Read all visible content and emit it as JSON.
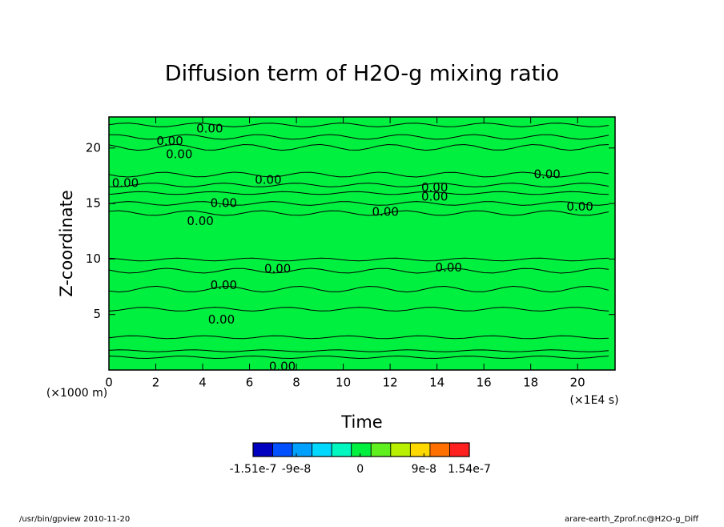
{
  "chart_data": {
    "type": "contour",
    "title": "Diffusion term of H2O-g mixing ratio",
    "xlabel": "Time",
    "ylabel": "Z-coordinate",
    "xunit": "(×1E4 s)",
    "yunit": "(×1000 m)",
    "xlim": [
      0,
      21.6
    ],
    "ylim": [
      0,
      22.8
    ],
    "xticks": [
      0,
      2,
      4,
      6,
      8,
      10,
      12,
      14,
      16,
      18,
      20
    ],
    "yticks": [
      5,
      10,
      15,
      20
    ],
    "field_color": "#00f040",
    "annotations": [
      {
        "text": "0.00",
        "x": 4.3,
        "y": 21.7
      },
      {
        "text": "0.00",
        "x": 2.6,
        "y": 20.6
      },
      {
        "text": "0.00",
        "x": 3.0,
        "y": 19.4
      },
      {
        "text": "0.00",
        "x": 0.7,
        "y": 16.8
      },
      {
        "text": "0.00",
        "x": 6.8,
        "y": 17.1
      },
      {
        "text": "0.00",
        "x": 13.9,
        "y": 16.4
      },
      {
        "text": "0.00",
        "x": 13.9,
        "y": 15.6
      },
      {
        "text": "0.00",
        "x": 18.7,
        "y": 17.6
      },
      {
        "text": "0.00",
        "x": 4.9,
        "y": 15.0
      },
      {
        "text": "0.00",
        "x": 11.8,
        "y": 14.2
      },
      {
        "text": "0.00",
        "x": 20.1,
        "y": 14.7
      },
      {
        "text": "0.00",
        "x": 3.9,
        "y": 13.4
      },
      {
        "text": "0.00",
        "x": 7.2,
        "y": 9.1
      },
      {
        "text": "0.00",
        "x": 14.5,
        "y": 9.2
      },
      {
        "text": "0.00",
        "x": 4.9,
        "y": 7.6
      },
      {
        "text": "0.00",
        "x": 4.8,
        "y": 4.5
      },
      {
        "text": "0.00",
        "x": 7.4,
        "y": 0.3
      }
    ],
    "colorbar": {
      "colors": [
        "#0000c0",
        "#0050ff",
        "#00a0ff",
        "#00d8ff",
        "#00f8c0",
        "#00f040",
        "#60f020",
        "#b8f000",
        "#ffd800",
        "#ff7000",
        "#ff2020"
      ],
      "clim": [
        -1.51e-07,
        1.54e-07
      ],
      "ticks": [
        {
          "value": -1.51e-07,
          "label": "-1.51e-7"
        },
        {
          "value": -9e-08,
          "label": "-9e-8"
        },
        0,
        {
          "value": 9e-08,
          "label": "9e-8"
        },
        {
          "value": 1.54e-07,
          "label": "1.54e-7"
        }
      ]
    },
    "footer_left": "/usr/bin/gpview  2010-11-20",
    "footer_right": "arare-earth_Zprof.nc@H2O-g_Diff"
  }
}
